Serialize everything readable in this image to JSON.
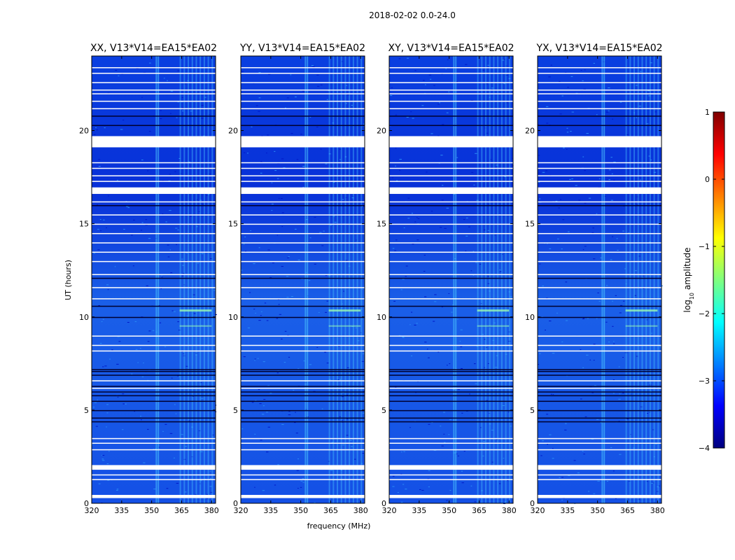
{
  "figure": {
    "title": "2018-02-02 0.0-24.0"
  },
  "chart_data": {
    "type": "heatmap",
    "title": "2018-02-02 0.0-24.0",
    "xlabel": "frequency (MHz)",
    "ylabel": "UT (hours)",
    "xlim": [
      320,
      382
    ],
    "ylim": [
      0,
      24
    ],
    "x_ticks": [
      320,
      335,
      350,
      365,
      380
    ],
    "y_ticks": [
      0,
      5,
      10,
      15,
      20
    ],
    "panels": [
      {
        "name": "XX, V13*V14=EA15*EA02",
        "pol": "XX"
      },
      {
        "name": "YY, V13*V14=EA15*EA02",
        "pol": "YY"
      },
      {
        "name": "XY, V13*V14=EA15*EA02",
        "pol": "XY"
      },
      {
        "name": "YX, V13*V14=EA15*EA02",
        "pol": "YX"
      }
    ],
    "colorbar": {
      "label": "log10 amplitude",
      "label_base": "log",
      "label_sub": "10",
      "label_rest": " amplitude",
      "range": [
        -4,
        1
      ],
      "ticks": [
        "1",
        "0",
        "−1",
        "−2",
        "−3",
        "−4"
      ],
      "tick_values": [
        1,
        0,
        -1,
        -2,
        -3,
        -4
      ],
      "colormap": "jet",
      "colors": [
        "#00007f",
        "#0000ff",
        "#007fff",
        "#00ffff",
        "#7fff7f",
        "#ffff00",
        "#ff7f00",
        "#ff0000",
        "#7f0000"
      ]
    },
    "masked_hours": [
      [
        19.1,
        19.7
      ],
      [
        16.6,
        16.95
      ],
      [
        1.8,
        2.05
      ],
      [
        0.28,
        0.45
      ]
    ],
    "flag_lines_hours": [
      1.3,
      1.55,
      2.9,
      3.25,
      3.5,
      6.2,
      6.6,
      8.2,
      8.5,
      9.0,
      11.0,
      11.6,
      12.3,
      13.0,
      13.5,
      14.0,
      14.5,
      15.0,
      15.5,
      16.2,
      17.3,
      17.6,
      18.0,
      18.3,
      21.2,
      21.6,
      22.0,
      22.2,
      22.6,
      23.1,
      23.4
    ],
    "dark_lines_hours": [
      4.4,
      4.6,
      5.0,
      5.5,
      5.8,
      6.0,
      6.3,
      6.9,
      7.1,
      7.2,
      10.0,
      10.6,
      12.1,
      16.0,
      20.3,
      20.8
    ],
    "rfi_channels_mhz": [
      352,
      353,
      364,
      366,
      368,
      370,
      372,
      374,
      376,
      378,
      380
    ]
  }
}
